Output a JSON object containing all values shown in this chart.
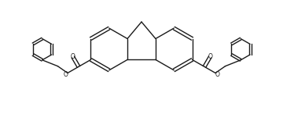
{
  "bg_color": "#ffffff",
  "line_color": "#1a1a1a",
  "lw": 1.0,
  "dbo": 0.055,
  "fig_width": 3.6,
  "fig_height": 1.6,
  "dpi": 100,
  "xlim": [
    0,
    10
  ],
  "ylim": [
    0,
    4.4
  ]
}
